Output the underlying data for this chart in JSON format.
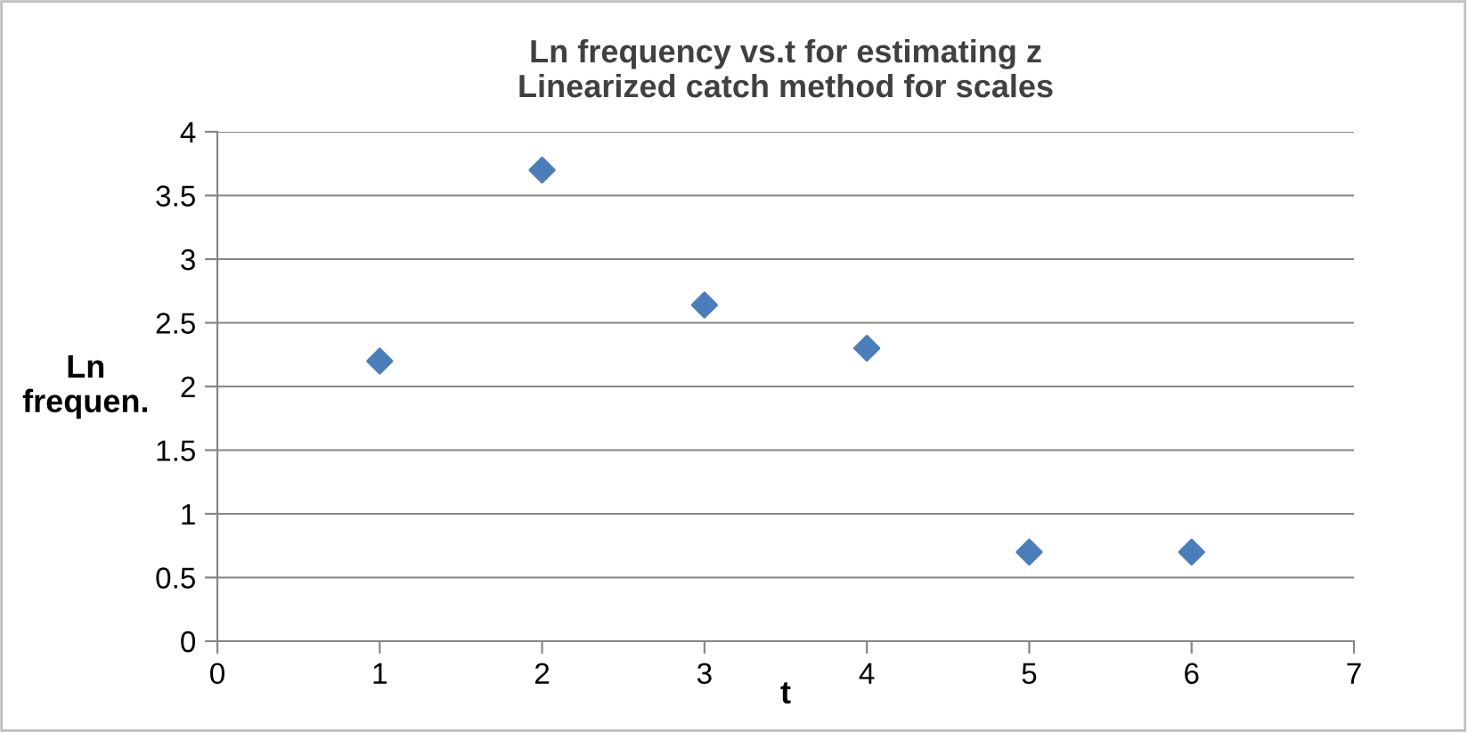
{
  "chart_data": {
    "type": "scatter",
    "title": "Ln frequency vs.t for estimating z\nLinearized catch method for scales",
    "xlabel": "t",
    "ylabel": "Ln\nfrequen.",
    "x": [
      1,
      2,
      3,
      4,
      5,
      6
    ],
    "series": [
      {
        "color": "#4a7ebb",
        "values": [
          2.2,
          3.7,
          2.64,
          2.3,
          0.7,
          0.7
        ]
      }
    ],
    "xlim": [
      0,
      7
    ],
    "xticks": [
      0,
      1,
      2,
      3,
      4,
      5,
      6,
      7
    ],
    "ylim": [
      0,
      4
    ],
    "yticks": [
      0,
      0.5,
      1,
      1.5,
      2,
      2.5,
      3,
      3.5,
      4
    ],
    "grid": "y",
    "marker": "diamond",
    "legend": false
  }
}
